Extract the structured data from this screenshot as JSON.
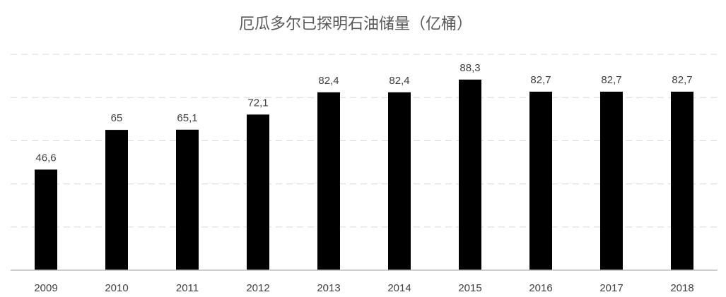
{
  "chart_data": {
    "type": "bar",
    "title": "厄瓜多尔已探明石油储量（亿桶）",
    "categories": [
      "2009",
      "2010",
      "2011",
      "2012",
      "2013",
      "2014",
      "2015",
      "2016",
      "2017",
      "2018"
    ],
    "values": [
      46.6,
      65,
      65.1,
      72.1,
      82.4,
      82.4,
      88.3,
      82.7,
      82.7,
      82.7
    ],
    "data_labels": [
      "46,6",
      "65",
      "65,1",
      "72,1",
      "82,4",
      "82,4",
      "88,3",
      "82,7",
      "82,7",
      "82,7"
    ],
    "xlabel": "",
    "ylabel": "",
    "ylim": [
      0,
      100
    ],
    "grid": true,
    "legend": "none",
    "bar_color": "#000000",
    "grid_color": "#d9d9d9"
  }
}
